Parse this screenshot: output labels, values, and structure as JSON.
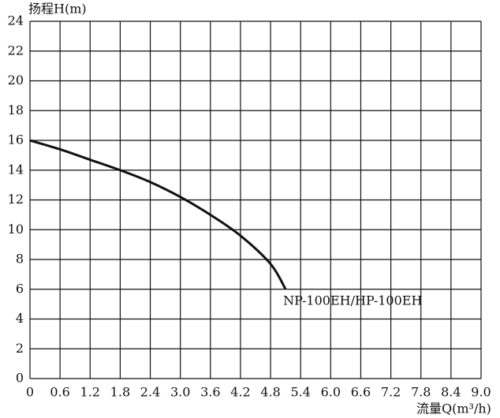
{
  "chart_data": {
    "type": "line",
    "y_label": "扬程H(m)",
    "x_label": "流量Q(m³/h)",
    "x": [
      0,
      0.6,
      1.2,
      1.8,
      2.4,
      3.0,
      3.6,
      4.2,
      4.8,
      5.1
    ],
    "series": [
      {
        "name": "NP-100EH/HP-100EH",
        "color": "#111111",
        "values": [
          16,
          15.4,
          14.7,
          14,
          13.2,
          12.2,
          11.0,
          9.6,
          7.7,
          6.0
        ]
      }
    ],
    "xlim": [
      0,
      9
    ],
    "xticks": [
      0,
      0.6,
      1.2,
      1.8,
      2.4,
      {
        "value": 3,
        "label": "3.0"
      },
      3.6,
      4.2,
      4.8,
      5.4,
      {
        "value": 6,
        "label": "6.0"
      },
      6.6,
      7.2,
      7.8,
      8.4,
      {
        "value": 9,
        "label": "9.0"
      }
    ],
    "ylim": [
      0,
      24
    ],
    "yticks": [
      0,
      2,
      4,
      6,
      8,
      10,
      12,
      14,
      16,
      18,
      20,
      22,
      24
    ],
    "grid": true
  }
}
